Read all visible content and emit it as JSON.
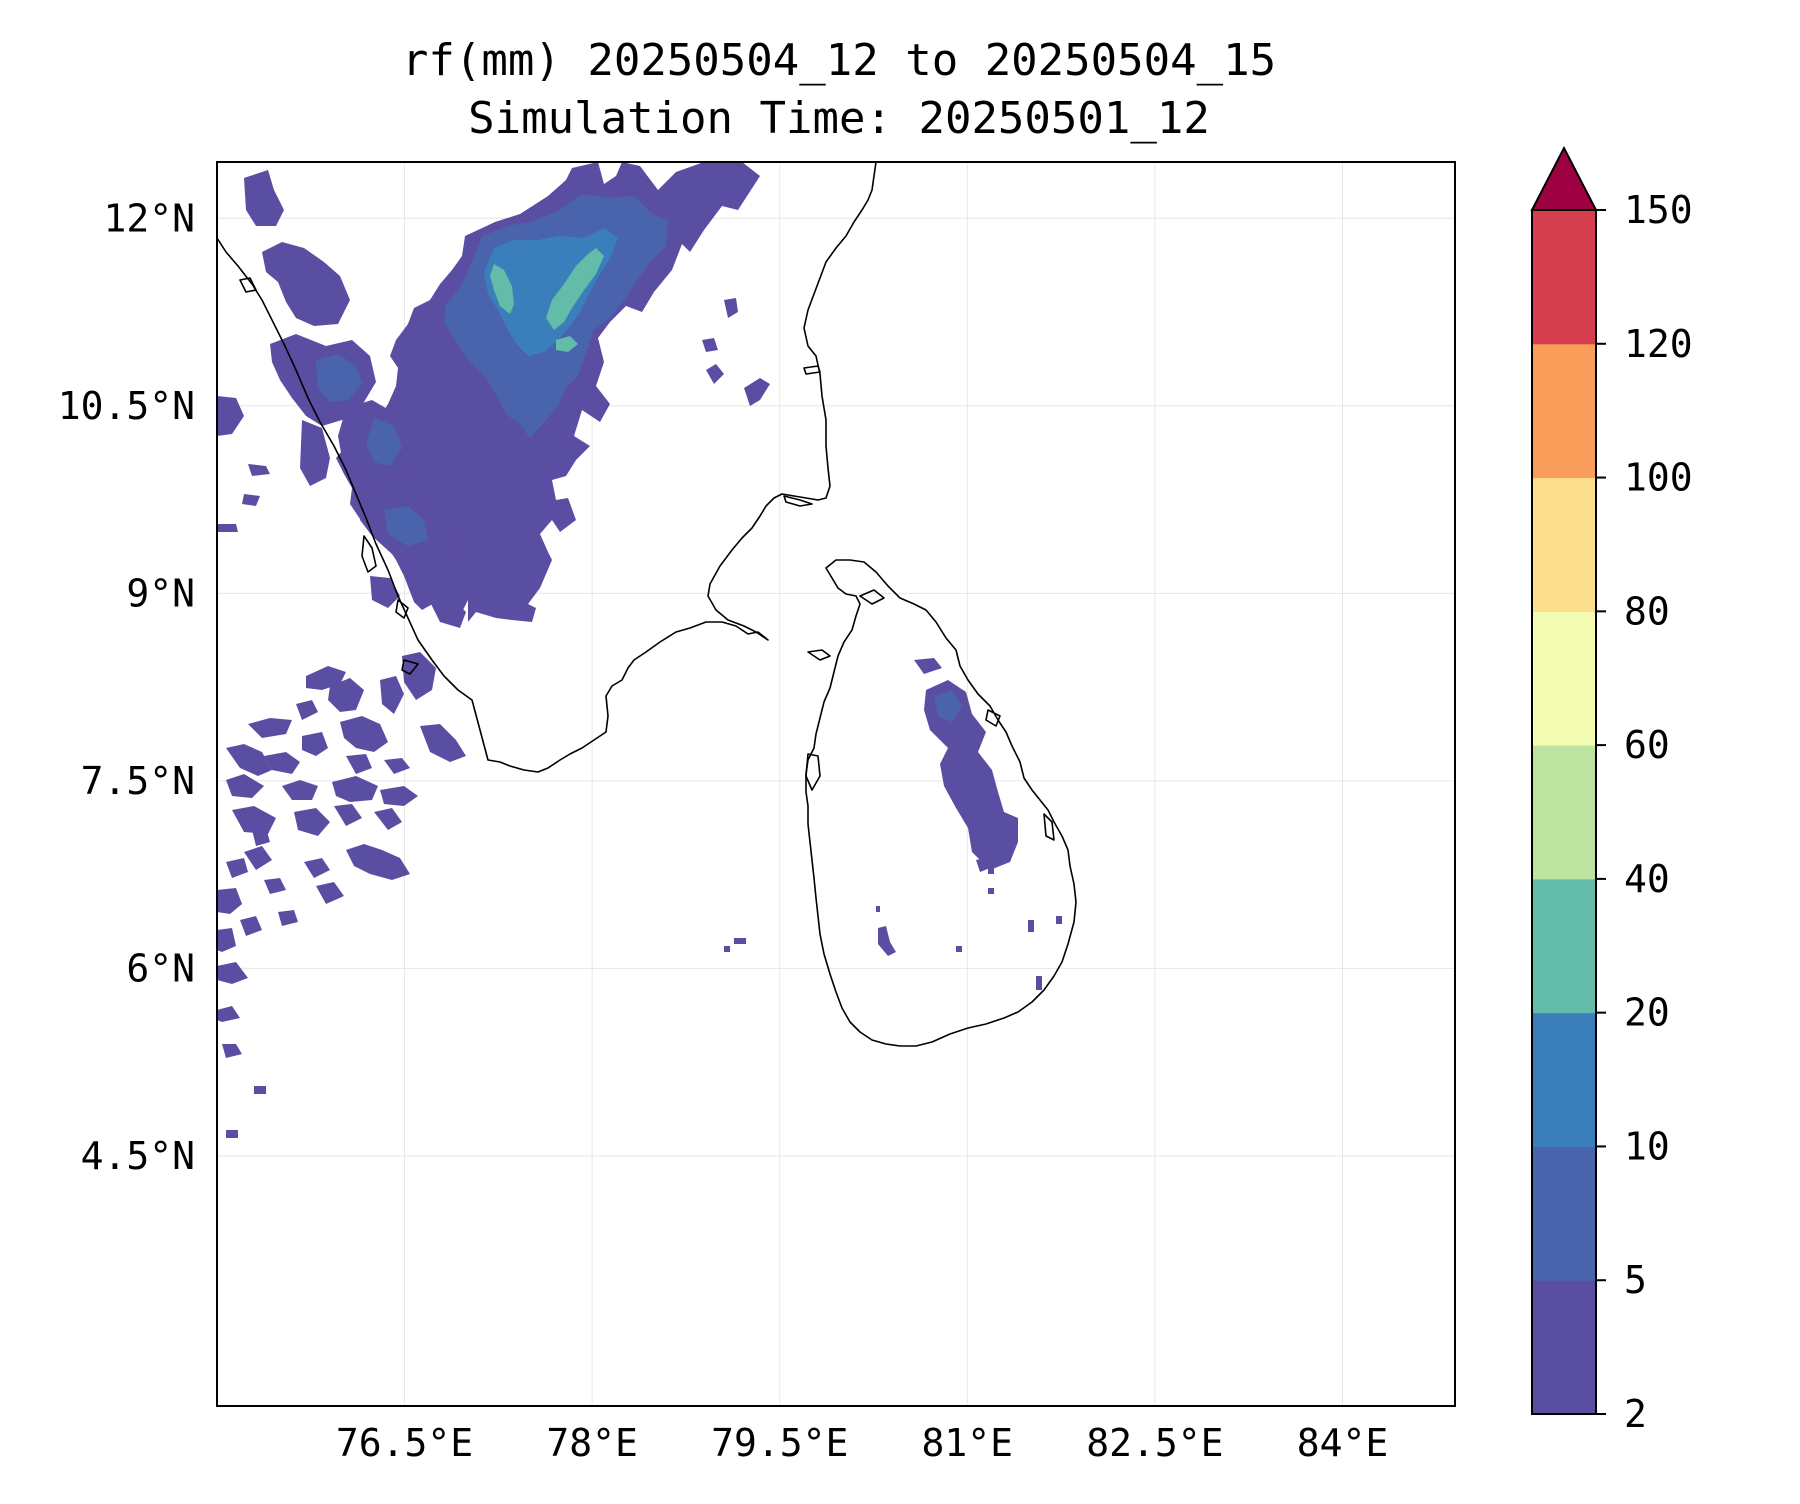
{
  "title": {
    "line1": "rf(mm) 20250504_12 to 20250504_15",
    "line2": "Simulation Time: 20250501_12"
  },
  "map": {
    "lon_range": [
      75.0,
      84.9
    ],
    "lat_range": [
      2.5,
      12.45
    ],
    "x_ticks": [
      {
        "value": 76.5,
        "label": "76.5°E"
      },
      {
        "value": 78.0,
        "label": "78°E"
      },
      {
        "value": 79.5,
        "label": "79.5°E"
      },
      {
        "value": 81.0,
        "label": "81°E"
      },
      {
        "value": 82.5,
        "label": "82.5°E"
      },
      {
        "value": 84.0,
        "label": "84°E"
      }
    ],
    "y_ticks": [
      {
        "value": 12.0,
        "label": "12°N"
      },
      {
        "value": 10.5,
        "label": "10.5°N"
      },
      {
        "value": 9.0,
        "label": "9°N"
      },
      {
        "value": 7.5,
        "label": "7.5°N"
      },
      {
        "value": 6.0,
        "label": "6°N"
      },
      {
        "value": 4.5,
        "label": "4.5°N"
      }
    ],
    "gridlines": true
  },
  "colorbar": {
    "levels": [
      {
        "label": "2",
        "color": "#5a4ea3"
      },
      {
        "label": "5",
        "color": "#4a63ad"
      },
      {
        "label": "10",
        "color": "#3a7fbb"
      },
      {
        "label": "20",
        "color": "#62bca9"
      },
      {
        "label": "40",
        "color": "#bde3a0"
      },
      {
        "label": "60",
        "color": "#f3fbb0"
      },
      {
        "label": "80",
        "color": "#fbdf8c"
      },
      {
        "label": "100",
        "color": "#f89d5a"
      },
      {
        "label": "120",
        "color": "#d53e4f"
      },
      {
        "label": "150",
        "color": ""
      }
    ],
    "extend_color": "#9e0142"
  },
  "colors": {
    "rain_light": "#5a4ea3",
    "rain_moderate": "#4a63ad",
    "rain_10_20": "#3a7fbb",
    "rain_20_40": "#62bca9",
    "coastline": "#000000",
    "grid": "#e6e6e6"
  }
}
